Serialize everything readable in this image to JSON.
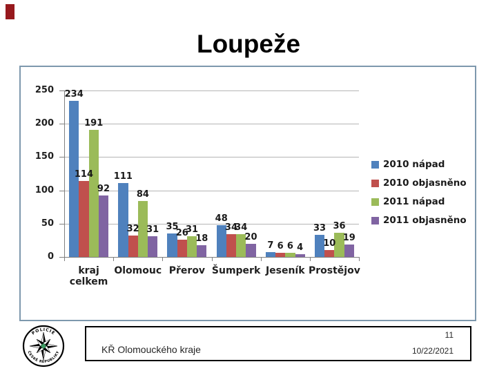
{
  "slide": {
    "title": "Loupeže",
    "corner_marker_color": "#97191D",
    "logo_text_top": "POLICIE",
    "logo_text_bottom": "ČESKÉ REPUBLIKY"
  },
  "chart_data": {
    "type": "bar",
    "title": "",
    "xlabel": "",
    "ylabel": "",
    "categories": [
      "kraj celkem",
      "Olomouc",
      "Přerov",
      "Šumperk",
      "Jeseník",
      "Prostějov"
    ],
    "series": [
      {
        "name": "2010 nápad",
        "color": "#4F81BD",
        "values": [
          234,
          111,
          35,
          48,
          7,
          33
        ]
      },
      {
        "name": "2010 objasněno",
        "color": "#C0504D",
        "values": [
          114,
          32,
          26,
          34,
          6,
          10
        ]
      },
      {
        "name": "2011 nápad",
        "color": "#9BBB59",
        "values": [
          191,
          84,
          31,
          34,
          6,
          36
        ]
      },
      {
        "name": "2011 objasněno",
        "color": "#8064A2",
        "values": [
          92,
          31,
          18,
          20,
          4,
          19
        ]
      }
    ],
    "ylim": [
      0,
      250
    ],
    "yticks": [
      0,
      50,
      100,
      150,
      200,
      250
    ],
    "grid": true,
    "data_labels": true,
    "legend_position": "right",
    "plot_border_color": "#7D98AD"
  },
  "footer": {
    "department": "KŘ Olomouckého kraje",
    "page_number": "11",
    "date": "10/22/2021"
  }
}
